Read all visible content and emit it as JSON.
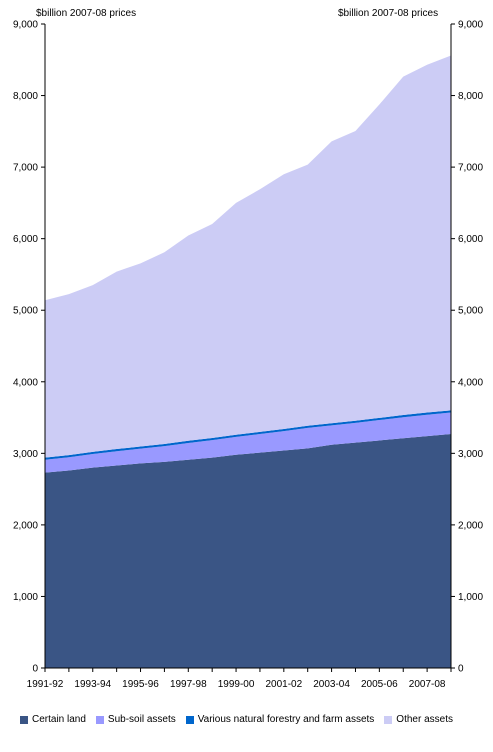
{
  "chart_data": {
    "type": "area",
    "stacked": true,
    "title": "",
    "ylabel_left": "$billion 2007-08 prices",
    "ylabel_right": "$billion 2007-08 prices",
    "ylim": [
      0,
      9000
    ],
    "yticks": [
      0,
      1000,
      2000,
      3000,
      4000,
      5000,
      6000,
      7000,
      8000,
      9000
    ],
    "ytick_labels": [
      "0",
      "1,000",
      "2,000",
      "3,000",
      "4,000",
      "5,000",
      "6,000",
      "7,000",
      "8,000",
      "9,000"
    ],
    "categories": [
      "1991-92",
      "1992-93",
      "1993-94",
      "1994-95",
      "1995-96",
      "1996-97",
      "1997-98",
      "1998-99",
      "1999-00",
      "2000-01",
      "2001-02",
      "2002-03",
      "2003-04",
      "2004-05",
      "2005-06",
      "2006-07",
      "2007-08",
      "2008-09"
    ],
    "xtick_labels": [
      "1991-92",
      "1993-94",
      "1995-96",
      "1997-98",
      "1999-00",
      "2001-02",
      "2003-04",
      "2005-06",
      "2007-08"
    ],
    "legend_position": "bottom",
    "series": [
      {
        "name": "Certain land",
        "color": "#3a5585",
        "values": [
          2730,
          2760,
          2800,
          2830,
          2860,
          2880,
          2910,
          2940,
          2980,
          3010,
          3040,
          3070,
          3120,
          3150,
          3180,
          3210,
          3240,
          3270
        ]
      },
      {
        "name": "Sub-soil assets",
        "color": "#9999ff",
        "values": [
          180,
          185,
          190,
          200,
          205,
          220,
          235,
          245,
          250,
          260,
          270,
          285,
          270,
          275,
          285,
          295,
          300,
          300
        ]
      },
      {
        "name": "Various natural forestry and farm assets",
        "color": "#0066cc",
        "values": [
          30,
          30,
          30,
          30,
          30,
          30,
          30,
          30,
          30,
          30,
          30,
          30,
          30,
          30,
          30,
          30,
          30,
          30
        ]
      },
      {
        "name": "Other assets",
        "color": "#ccccf5",
        "values": [
          2200,
          2250,
          2330,
          2480,
          2560,
          2680,
          2870,
          2990,
          3240,
          3390,
          3560,
          3650,
          3940,
          4050,
          4380,
          4730,
          4860,
          4960
        ]
      }
    ]
  }
}
